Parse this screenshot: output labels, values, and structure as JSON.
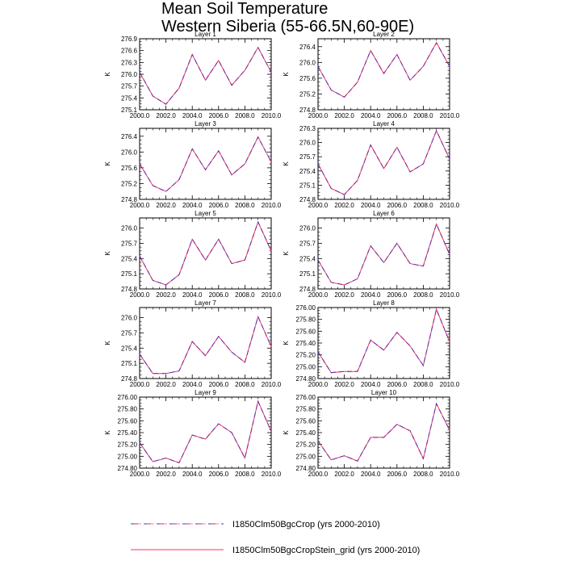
{
  "title": {
    "line1": "Mean Soil Temperature",
    "line2": "Western Siberia (55-66.5N,60-90E)"
  },
  "colors": {
    "dashed_series": "#5a2fb0",
    "solid_series": "#ff3355",
    "axis": "#000000"
  },
  "chart_data": [
    {
      "type": "line",
      "title": "Layer 1",
      "ylabel": "K",
      "x": [
        2000,
        2001,
        2002,
        2003,
        2004,
        2005,
        2006,
        2007,
        2008,
        2009,
        2010
      ],
      "xlim": [
        2000,
        2010
      ],
      "ylim": [
        275.1,
        276.9
      ],
      "yticks": [
        275.1,
        275.4,
        275.7,
        276.0,
        276.3,
        276.6,
        276.9
      ],
      "ytick_labels": [
        "275.1",
        "275.4",
        "275.7",
        "276.0",
        "276.3",
        "276.6",
        "276.9"
      ],
      "xticks": [
        2000,
        2002,
        2004,
        2006,
        2008,
        2010
      ],
      "xtick_labels": [
        "2000.0",
        "2002.0",
        "2004.0",
        "2006.0",
        "2008.0",
        "2010.0"
      ],
      "series": [
        {
          "name": "I1850Clm50BgcCrop (yrs 2000-2010)",
          "values": [
            276.05,
            275.45,
            275.24,
            275.65,
            276.5,
            275.85,
            276.35,
            275.72,
            276.1,
            276.68,
            276.05
          ]
        },
        {
          "name": "I1850Clm50BgcCropStein_grid (yrs 2000-2010)",
          "values": [
            276.05,
            275.45,
            275.24,
            275.65,
            276.5,
            275.85,
            276.35,
            275.72,
            276.1,
            276.68,
            276.05
          ]
        }
      ]
    },
    {
      "type": "line",
      "title": "Layer 2",
      "ylabel": "K",
      "x": [
        2000,
        2001,
        2002,
        2003,
        2004,
        2005,
        2006,
        2007,
        2008,
        2009,
        2010
      ],
      "xlim": [
        2000,
        2010
      ],
      "ylim": [
        274.8,
        276.6
      ],
      "yticks": [
        274.8,
        275.2,
        275.6,
        276.0,
        276.4
      ],
      "ytick_labels": [
        "274.8",
        "275.2",
        "275.6",
        "276.0",
        "276.4"
      ],
      "xticks": [
        2000,
        2002,
        2004,
        2006,
        2008,
        2010
      ],
      "xtick_labels": [
        "2000.0",
        "2002.0",
        "2004.0",
        "2006.0",
        "2008.0",
        "2010.0"
      ],
      "series": [
        {
          "name": "I1850Clm50BgcCrop (yrs 2000-2010)",
          "values": [
            275.9,
            275.3,
            275.12,
            275.5,
            276.3,
            275.72,
            276.2,
            275.55,
            275.9,
            276.5,
            275.9
          ]
        },
        {
          "name": "I1850Clm50BgcCropStein_grid (yrs 2000-2010)",
          "values": [
            275.9,
            275.3,
            275.12,
            275.5,
            276.3,
            275.72,
            276.2,
            275.55,
            275.9,
            276.5,
            275.9
          ]
        }
      ]
    },
    {
      "type": "line",
      "title": "Layer 3",
      "ylabel": "K",
      "x": [
        2000,
        2001,
        2002,
        2003,
        2004,
        2005,
        2006,
        2007,
        2008,
        2009,
        2010
      ],
      "xlim": [
        2000,
        2010
      ],
      "ylim": [
        274.8,
        276.6
      ],
      "yticks": [
        274.8,
        275.2,
        275.6,
        276.0,
        276.4
      ],
      "ytick_labels": [
        "274.8",
        "275.2",
        "275.6",
        "276.0",
        "276.4"
      ],
      "xticks": [
        2000,
        2002,
        2004,
        2006,
        2008,
        2010
      ],
      "xtick_labels": [
        "2000.0",
        "2002.0",
        "2004.0",
        "2006.0",
        "2008.0",
        "2010.0"
      ],
      "series": [
        {
          "name": "I1850Clm50BgcCrop (yrs 2000-2010)",
          "values": [
            275.7,
            275.15,
            275.0,
            275.3,
            276.08,
            275.55,
            276.03,
            275.42,
            275.7,
            276.38,
            275.75
          ]
        },
        {
          "name": "I1850Clm50BgcCropStein_grid (yrs 2000-2010)",
          "values": [
            275.7,
            275.15,
            275.0,
            275.3,
            276.08,
            275.55,
            276.03,
            275.42,
            275.7,
            276.38,
            275.75
          ]
        }
      ]
    },
    {
      "type": "line",
      "title": "Layer 4",
      "ylabel": "K",
      "x": [
        2000,
        2001,
        2002,
        2003,
        2004,
        2005,
        2006,
        2007,
        2008,
        2009,
        2010
      ],
      "xlim": [
        2000,
        2010
      ],
      "ylim": [
        274.8,
        276.3
      ],
      "yticks": [
        274.8,
        275.1,
        275.4,
        275.7,
        276.0,
        276.3
      ],
      "ytick_labels": [
        "274.8",
        "275.1",
        "275.4",
        "275.7",
        "276.0",
        "276.3"
      ],
      "xticks": [
        2000,
        2002,
        2004,
        2006,
        2008,
        2010
      ],
      "xtick_labels": [
        "2000.0",
        "2002.0",
        "2004.0",
        "2006.0",
        "2008.0",
        "2010.0"
      ],
      "series": [
        {
          "name": "I1850Clm50BgcCrop (yrs 2000-2010)",
          "values": [
            275.55,
            275.03,
            274.9,
            275.2,
            275.95,
            275.45,
            275.9,
            275.38,
            275.55,
            276.25,
            275.65
          ]
        },
        {
          "name": "I1850Clm50BgcCropStein_grid (yrs 2000-2010)",
          "values": [
            275.55,
            275.03,
            274.9,
            275.2,
            275.95,
            275.45,
            275.9,
            275.38,
            275.55,
            276.25,
            275.65
          ]
        }
      ]
    },
    {
      "type": "line",
      "title": "Layer 5",
      "ylabel": "K",
      "x": [
        2000,
        2001,
        2002,
        2003,
        2004,
        2005,
        2006,
        2007,
        2008,
        2009,
        2010
      ],
      "xlim": [
        2000,
        2010
      ],
      "ylim": [
        274.8,
        276.2
      ],
      "yticks": [
        274.8,
        275.1,
        275.4,
        275.7,
        276.0
      ],
      "ytick_labels": [
        "274.8",
        "275.1",
        "275.4",
        "275.7",
        "276.0"
      ],
      "xticks": [
        2000,
        2002,
        2004,
        2006,
        2008,
        2010
      ],
      "xtick_labels": [
        "2000.0",
        "2002.0",
        "2004.0",
        "2006.0",
        "2008.0",
        "2010.0"
      ],
      "series": [
        {
          "name": "I1850Clm50BgcCrop (yrs 2000-2010)",
          "values": [
            275.45,
            274.97,
            274.88,
            275.08,
            275.78,
            275.37,
            275.78,
            275.3,
            275.37,
            276.12,
            275.55
          ]
        },
        {
          "name": "I1850Clm50BgcCropStein_grid (yrs 2000-2010)",
          "values": [
            275.45,
            274.97,
            274.88,
            275.08,
            275.78,
            275.37,
            275.78,
            275.3,
            275.37,
            276.12,
            275.55
          ]
        }
      ]
    },
    {
      "type": "line",
      "title": "Layer 6",
      "ylabel": "K",
      "x": [
        2000,
        2001,
        2002,
        2003,
        2004,
        2005,
        2006,
        2007,
        2008,
        2009,
        2010
      ],
      "xlim": [
        2000,
        2010
      ],
      "ylim": [
        274.8,
        276.2
      ],
      "yticks": [
        274.8,
        275.1,
        275.4,
        275.7,
        276.0
      ],
      "ytick_labels": [
        "274.8",
        "275.1",
        "275.4",
        "275.7",
        "276.0"
      ],
      "xticks": [
        2000,
        2002,
        2004,
        2006,
        2008,
        2010
      ],
      "xtick_labels": [
        "2000.0",
        "2002.0",
        "2004.0",
        "2006.0",
        "2008.0",
        "2010.0"
      ],
      "series": [
        {
          "name": "I1850Clm50BgcCrop (yrs 2000-2010)",
          "values": [
            275.37,
            274.93,
            274.88,
            275.0,
            275.65,
            275.32,
            275.7,
            275.3,
            275.25,
            276.08,
            275.48
          ]
        },
        {
          "name": "I1850Clm50BgcCropStein_grid (yrs 2000-2010)",
          "values": [
            275.37,
            274.93,
            274.88,
            275.0,
            275.65,
            275.32,
            275.7,
            275.3,
            275.25,
            276.08,
            275.48
          ]
        }
      ]
    },
    {
      "type": "line",
      "title": "Layer 7",
      "ylabel": "K",
      "x": [
        2000,
        2001,
        2002,
        2003,
        2004,
        2005,
        2006,
        2007,
        2008,
        2009,
        2010
      ],
      "xlim": [
        2000,
        2010
      ],
      "ylim": [
        274.8,
        276.2
      ],
      "yticks": [
        274.8,
        275.1,
        275.4,
        275.7,
        276.0
      ],
      "ytick_labels": [
        "274.8",
        "275.1",
        "275.4",
        "275.7",
        "276.0"
      ],
      "xticks": [
        2000,
        2002,
        2004,
        2006,
        2008,
        2010
      ],
      "xtick_labels": [
        "2000.0",
        "2002.0",
        "2004.0",
        "2006.0",
        "2008.0",
        "2010.0"
      ],
      "series": [
        {
          "name": "I1850Clm50BgcCrop (yrs 2000-2010)",
          "values": [
            275.28,
            274.9,
            274.9,
            274.95,
            275.53,
            275.25,
            275.63,
            275.32,
            275.12,
            276.02,
            275.43
          ]
        },
        {
          "name": "I1850Clm50BgcCropStein_grid (yrs 2000-2010)",
          "values": [
            275.28,
            274.9,
            274.9,
            274.95,
            275.53,
            275.25,
            275.63,
            275.32,
            275.12,
            276.02,
            275.43
          ]
        }
      ]
    },
    {
      "type": "line",
      "title": "Layer 8",
      "ylabel": "K",
      "x": [
        2000,
        2001,
        2002,
        2003,
        2004,
        2005,
        2006,
        2007,
        2008,
        2009,
        2010
      ],
      "xlim": [
        2000,
        2010
      ],
      "ylim": [
        274.8,
        276.0
      ],
      "yticks": [
        274.8,
        275.0,
        275.2,
        275.4,
        275.6,
        275.8,
        276.0
      ],
      "ytick_labels": [
        "274.80",
        "275.00",
        "275.20",
        "275.40",
        "275.60",
        "275.80",
        "276.00"
      ],
      "xticks": [
        2000,
        2002,
        2004,
        2006,
        2008,
        2010
      ],
      "xtick_labels": [
        "2000.0",
        "2002.0",
        "2004.0",
        "2006.0",
        "2008.0",
        "2010.0"
      ],
      "series": [
        {
          "name": "I1850Clm50BgcCrop (yrs 2000-2010)",
          "values": [
            275.25,
            274.9,
            274.92,
            274.92,
            275.45,
            275.28,
            275.58,
            275.35,
            275.02,
            275.97,
            275.42
          ]
        },
        {
          "name": "I1850Clm50BgcCropStein_grid (yrs 2000-2010)",
          "values": [
            275.25,
            274.9,
            274.92,
            274.92,
            275.45,
            275.28,
            275.58,
            275.35,
            275.02,
            275.97,
            275.42
          ]
        }
      ]
    },
    {
      "type": "line",
      "title": "Layer 9",
      "ylabel": "K",
      "x": [
        2000,
        2001,
        2002,
        2003,
        2004,
        2005,
        2006,
        2007,
        2008,
        2009,
        2010
      ],
      "xlim": [
        2000,
        2010
      ],
      "ylim": [
        274.8,
        276.0
      ],
      "yticks": [
        274.8,
        275.0,
        275.2,
        275.4,
        275.6,
        275.8,
        276.0
      ],
      "ytick_labels": [
        "274.80",
        "275.00",
        "275.20",
        "275.40",
        "275.60",
        "275.80",
        "276.00"
      ],
      "xticks": [
        2000,
        2002,
        2004,
        2006,
        2008,
        2010
      ],
      "xtick_labels": [
        "2000.0",
        "2002.0",
        "2004.0",
        "2006.0",
        "2008.0",
        "2010.0"
      ],
      "series": [
        {
          "name": "I1850Clm50BgcCrop (yrs 2000-2010)",
          "values": [
            275.23,
            274.91,
            274.97,
            274.89,
            275.36,
            275.29,
            275.55,
            275.4,
            274.97,
            275.93,
            275.42
          ]
        },
        {
          "name": "I1850Clm50BgcCropStein_grid (yrs 2000-2010)",
          "values": [
            275.23,
            274.91,
            274.97,
            274.89,
            275.36,
            275.29,
            275.55,
            275.4,
            274.97,
            275.93,
            275.42
          ]
        }
      ]
    },
    {
      "type": "line",
      "title": "Layer 10",
      "ylabel": "K",
      "x": [
        2000,
        2001,
        2002,
        2003,
        2004,
        2005,
        2006,
        2007,
        2008,
        2009,
        2010
      ],
      "xlim": [
        2000,
        2010
      ],
      "ylim": [
        274.8,
        276.0
      ],
      "yticks": [
        274.8,
        275.0,
        275.2,
        275.4,
        275.6,
        275.8,
        276.0
      ],
      "ytick_labels": [
        "274.80",
        "275.00",
        "275.20",
        "275.40",
        "275.60",
        "275.80",
        "276.00"
      ],
      "xticks": [
        2000,
        2002,
        2004,
        2006,
        2008,
        2010
      ],
      "xtick_labels": [
        "2000.0",
        "2002.0",
        "2004.0",
        "2006.0",
        "2008.0",
        "2010.0"
      ],
      "series": [
        {
          "name": "I1850Clm50BgcCrop (yrs 2000-2010)",
          "values": [
            275.26,
            274.94,
            275.01,
            274.92,
            275.32,
            275.32,
            275.54,
            275.43,
            274.96,
            275.89,
            275.44
          ]
        },
        {
          "name": "I1850Clm50BgcCropStein_grid (yrs 2000-2010)",
          "values": [
            275.26,
            274.94,
            275.01,
            274.92,
            275.32,
            275.32,
            275.54,
            275.43,
            274.96,
            275.89,
            275.44
          ]
        }
      ]
    }
  ],
  "legend": {
    "items": [
      {
        "label": "I1850Clm50BgcCrop (yrs 2000-2010)",
        "style": "dashed"
      },
      {
        "label": "I1850Clm50BgcCropStein_grid (yrs 2000-2010)",
        "style": "solid"
      }
    ]
  }
}
